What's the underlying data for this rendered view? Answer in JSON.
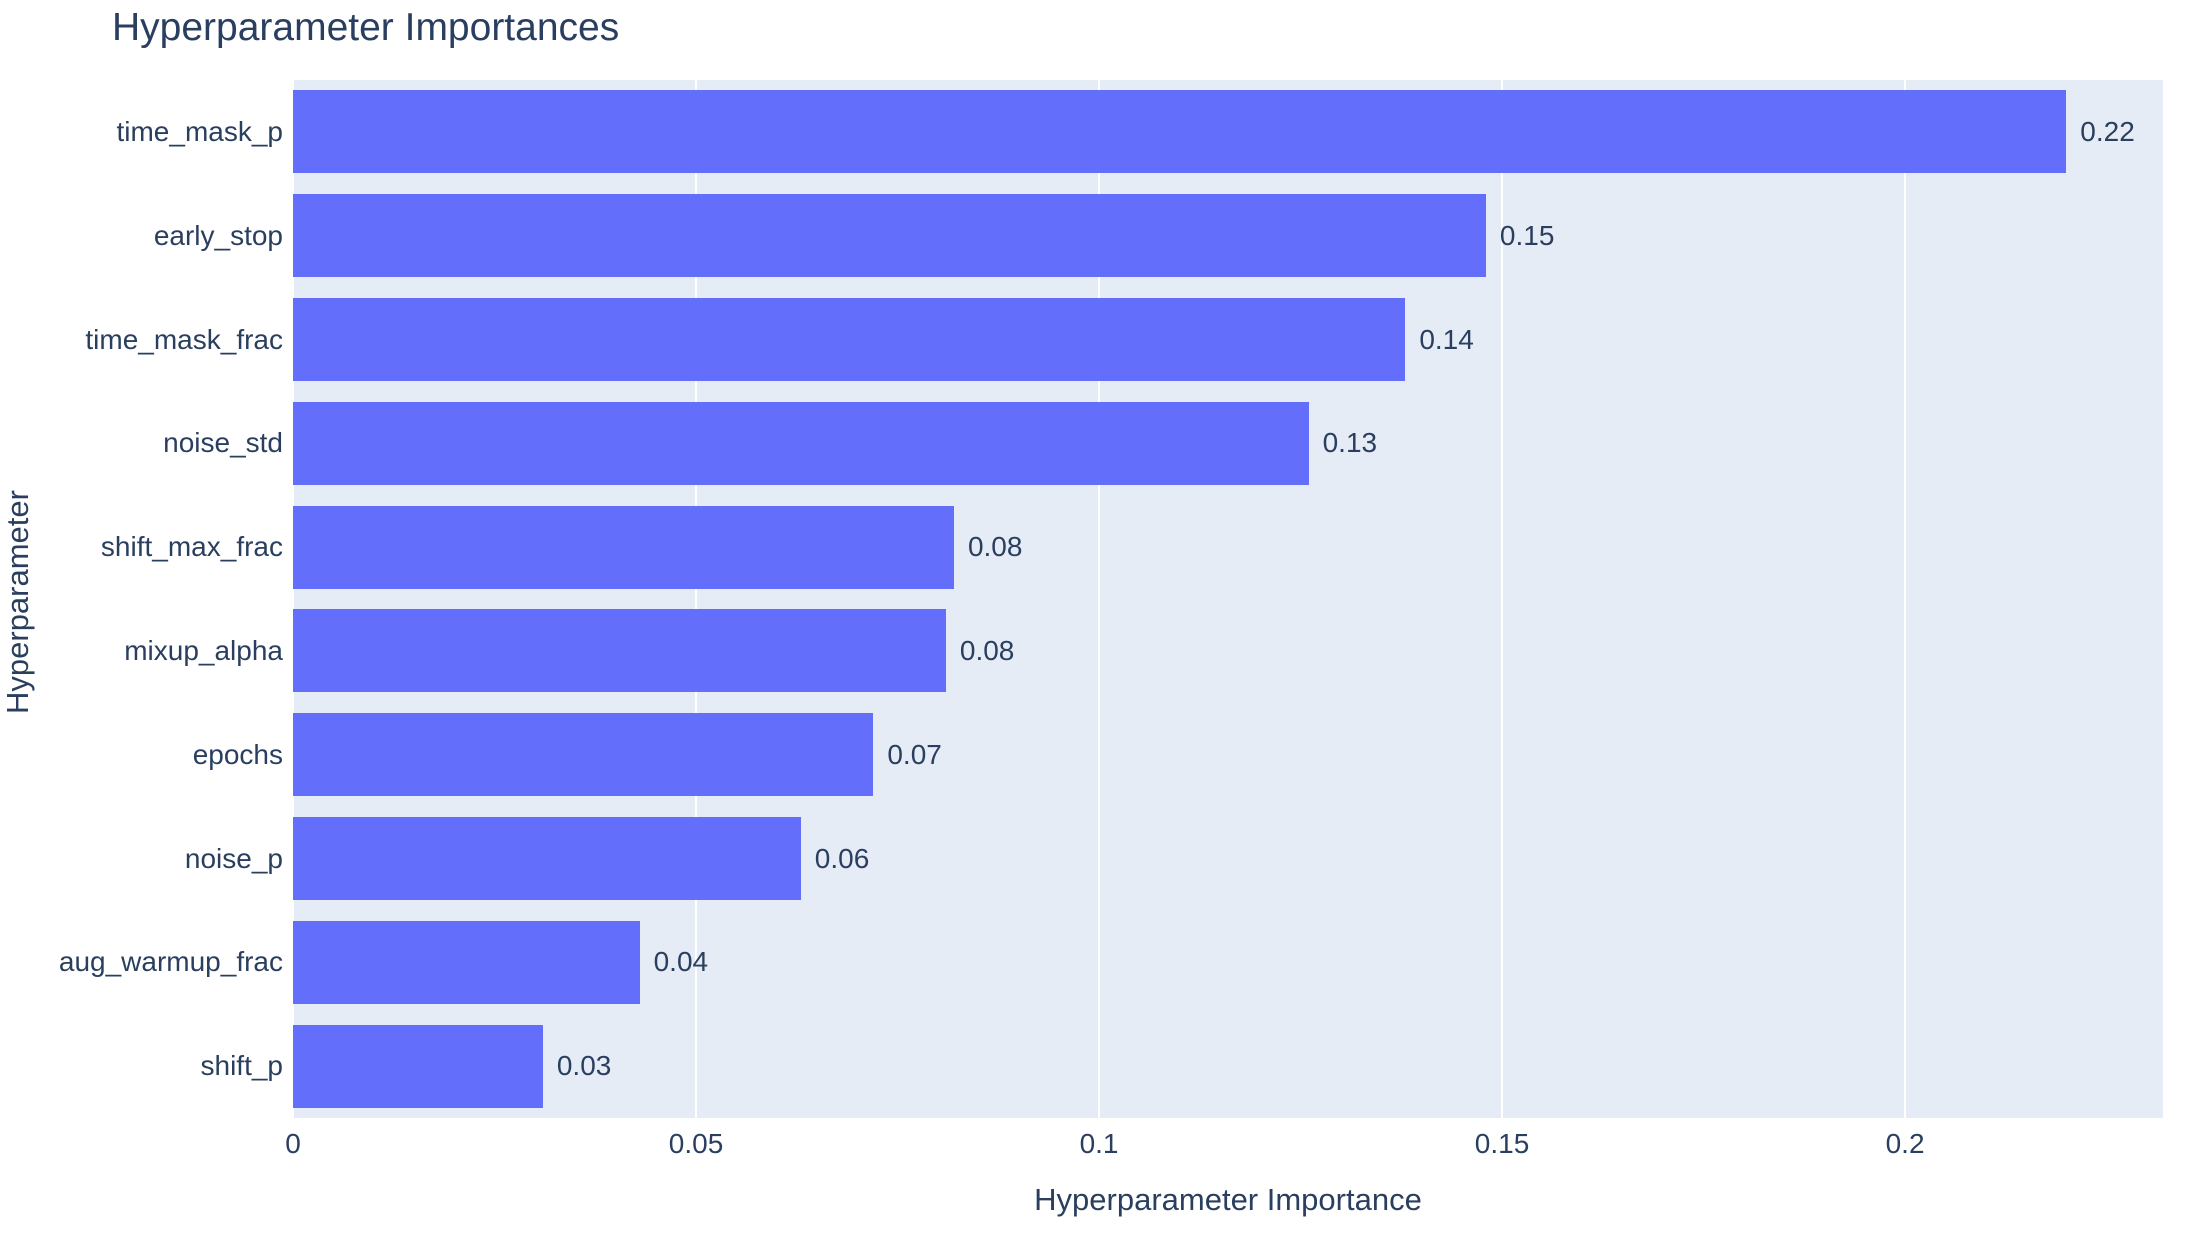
{
  "chart_data": {
    "type": "bar",
    "orientation": "horizontal",
    "title": "Hyperparameter Importances",
    "xlabel": "Hyperparameter Importance",
    "ylabel": "Hyperparameter",
    "categories": [
      "time_mask_p",
      "early_stop",
      "time_mask_frac",
      "noise_std",
      "shift_max_frac",
      "mixup_alpha",
      "epochs",
      "noise_p",
      "aug_warmup_frac",
      "shift_p"
    ],
    "values": [
      0.22,
      0.148,
      0.138,
      0.126,
      0.082,
      0.081,
      0.072,
      0.063,
      0.043,
      0.031
    ],
    "value_labels": [
      "0.22",
      "0.15",
      "0.14",
      "0.13",
      "0.08",
      "0.08",
      "0.07",
      "0.06",
      "0.04",
      "0.03"
    ],
    "x_ticks": [
      0,
      0.05,
      0.1,
      0.15,
      0.2
    ],
    "x_tick_labels": [
      "0",
      "0.05",
      "0.1",
      "0.15",
      "0.2"
    ],
    "xlim": [
      0,
      0.232
    ],
    "grid": true,
    "legend_position": "none",
    "colors": {
      "bar": "#636EFA",
      "plot_background": "#E5ECF6",
      "paper_background": "#FFFFFF",
      "gridline": "#FFFFFF",
      "text": "#2a3f5f"
    }
  }
}
